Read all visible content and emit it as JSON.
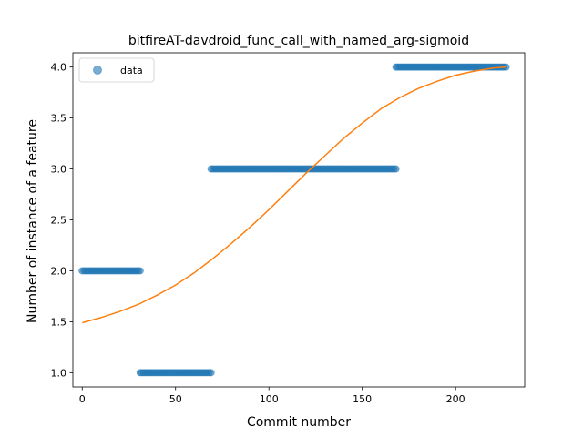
{
  "chart_data": {
    "type": "scatter",
    "title": "bitfireAT-davdroid_func_call_with_named_arg-sigmoid",
    "xlabel": "Commit number",
    "ylabel": "Number of instance of a feature",
    "xlim": [
      -5,
      237
    ],
    "ylim": [
      0.86,
      4.14
    ],
    "xticks": [
      0,
      50,
      100,
      150,
      200
    ],
    "xtick_labels": [
      "0",
      "50",
      "100",
      "150",
      "200"
    ],
    "yticks": [
      1.0,
      1.5,
      2.0,
      2.5,
      3.0,
      3.5,
      4.0
    ],
    "ytick_labels": [
      "1.0",
      "1.5",
      "2.0",
      "2.5",
      "3.0",
      "3.5",
      "4.0"
    ],
    "grid": false,
    "legend": {
      "entries": [
        "data"
      ],
      "placement": "upper left"
    },
    "series": [
      {
        "name": "data",
        "kind": "scatter",
        "color": "#1f77b4",
        "alpha": 0.6,
        "segments": [
          {
            "x_start": 0,
            "x_end": 31,
            "y": 2
          },
          {
            "x_start": 31,
            "x_end": 69,
            "y": 1
          },
          {
            "x_start": 69,
            "x_end": 168,
            "y": 3
          },
          {
            "x_start": 168,
            "x_end": 227,
            "y": 4
          }
        ]
      },
      {
        "kind": "line",
        "color": "#ff7f0e",
        "x": [
          0,
          10,
          20,
          30,
          40,
          50,
          60,
          70,
          80,
          90,
          100,
          110,
          120,
          130,
          140,
          150,
          160,
          170,
          180,
          190,
          200,
          210,
          220,
          227
        ],
        "y": [
          1.49,
          1.54,
          1.6,
          1.67,
          1.76,
          1.86,
          1.98,
          2.12,
          2.27,
          2.43,
          2.6,
          2.78,
          2.96,
          3.13,
          3.3,
          3.45,
          3.59,
          3.7,
          3.79,
          3.86,
          3.92,
          3.96,
          3.99,
          4.0
        ]
      }
    ]
  }
}
